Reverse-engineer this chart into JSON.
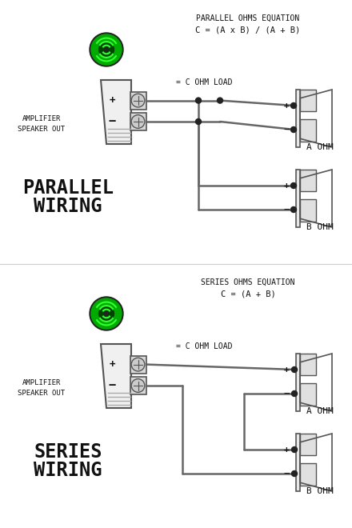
{
  "bg_color": "#ffffff",
  "line_color": "#555555",
  "wire_color": "#666666",
  "text_color": "#111111",
  "green_dark": "#006600",
  "green_mid": "#00aa00",
  "green_bright": "#00dd00",
  "parallel_eq_line1": "PARALLEL OHMS EQUATION",
  "parallel_eq_line2": "C = (A x B) / (A + B)",
  "series_eq_line1": "SERIES OHMS EQUATION",
  "series_eq_line2": "C = (A + B)",
  "label_amp": "AMPLIFIER\nSPEAKER OUT",
  "label_c_ohm": "= C OHM LOAD",
  "label_a_ohm": "A OHM",
  "label_b_ohm": "B OHM",
  "label_parallel_1": "PARALLEL",
  "label_parallel_2": "WIRING",
  "label_series_1": "SERIES",
  "label_series_2": "WIRING"
}
